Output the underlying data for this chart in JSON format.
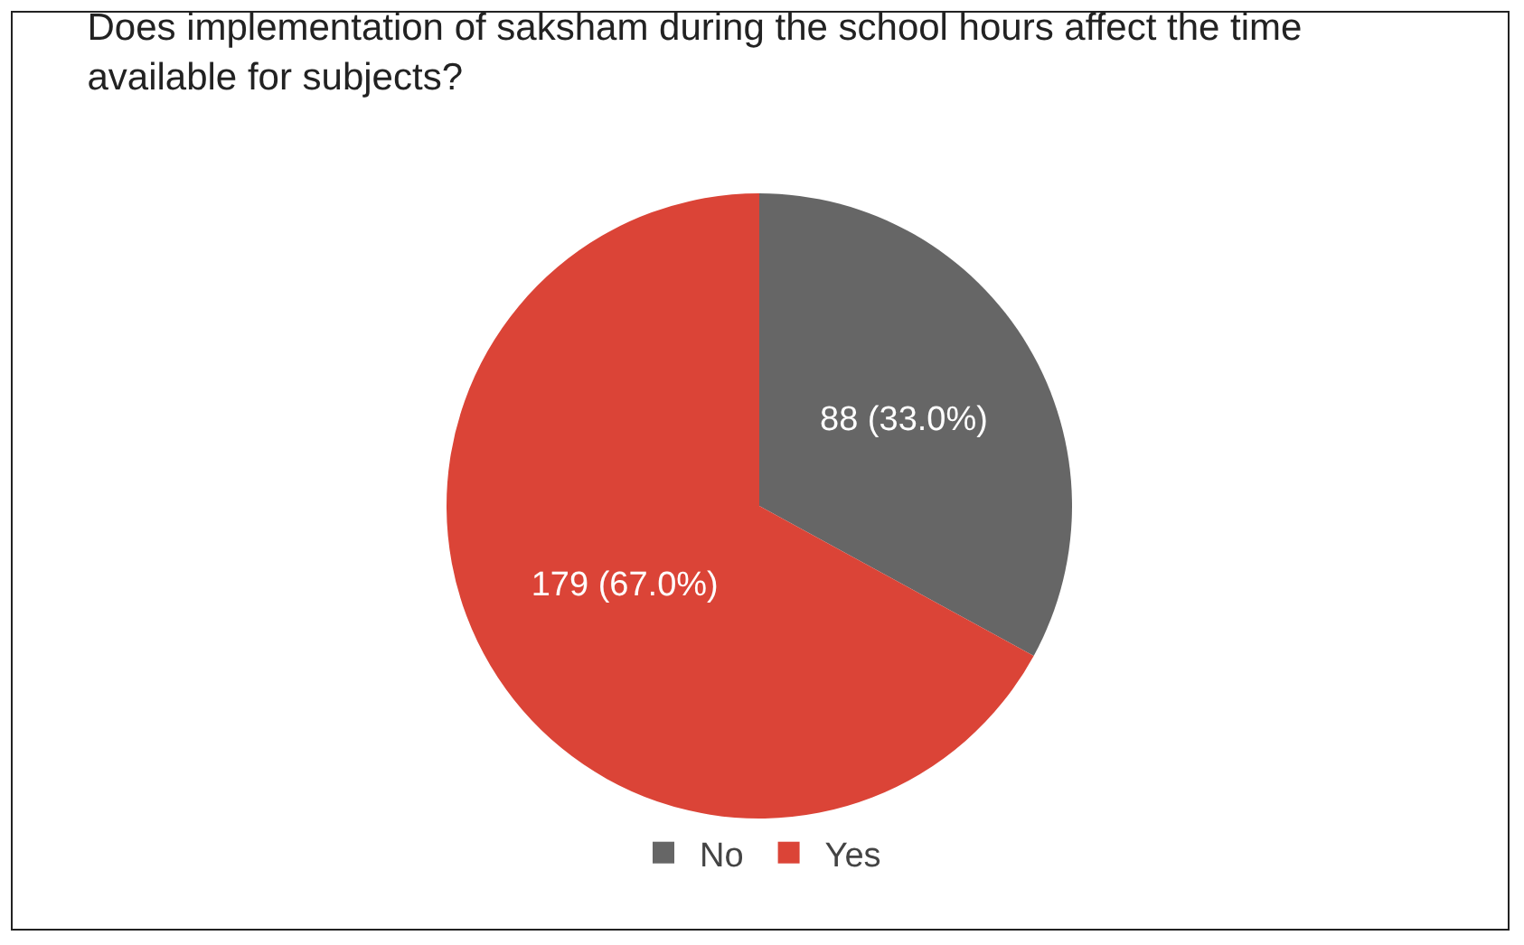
{
  "chart_data": {
    "type": "pie",
    "title": "Does implementation of saksham during the school hours affect the time available for subjects?",
    "categories": [
      "No",
      "Yes"
    ],
    "values": [
      88,
      179
    ],
    "colors": [
      "#666666",
      "#db4437"
    ],
    "value_labels": [
      "88 (33.0%)",
      "179 (67.0%)"
    ],
    "legend": "bottom"
  }
}
